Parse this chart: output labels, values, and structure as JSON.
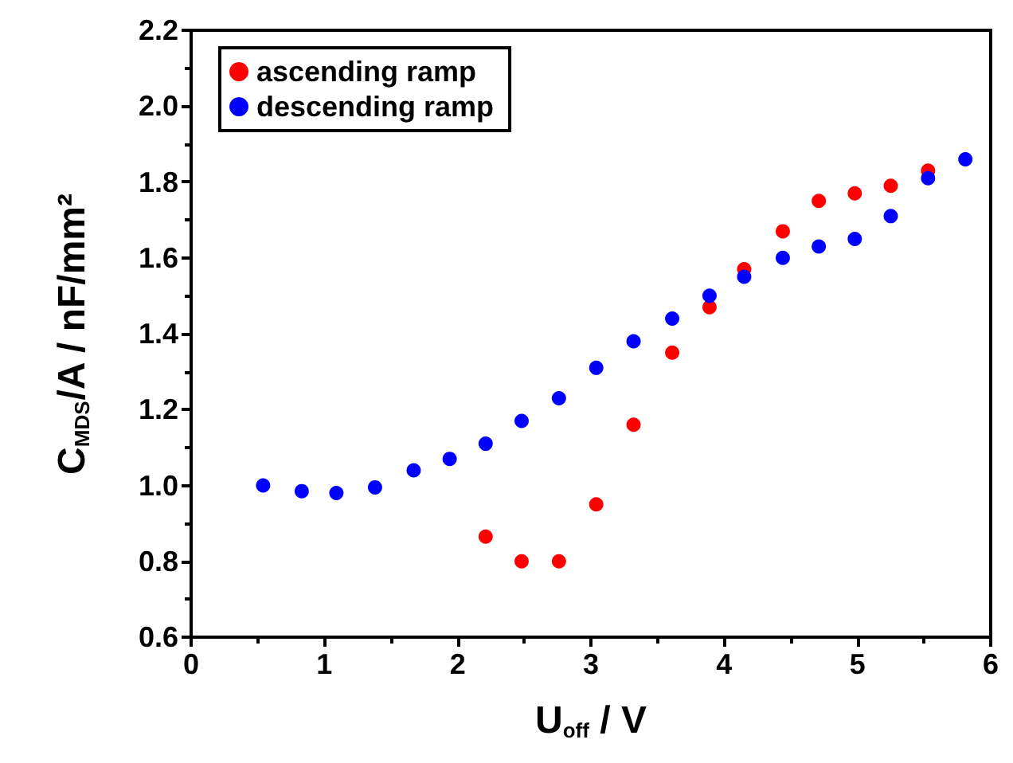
{
  "chart_data": {
    "type": "scatter",
    "xlabel": "U$_{off}$ / V",
    "ylabel": "C$_{MDS}$/A / nF/mm²",
    "xlim": [
      0,
      6
    ],
    "xticks": [
      0,
      1,
      2,
      3,
      4,
      5,
      6
    ],
    "ylim": [
      0.6,
      2.2
    ],
    "yticks": [
      0.6,
      0.8,
      {
        "value": 1,
        "label": "1.0"
      },
      1.2,
      1.4,
      1.6,
      1.8,
      {
        "value": 2,
        "label": "2.0"
      },
      2.2
    ],
    "legend": "top left",
    "marker": "circle",
    "grid": false,
    "series": [
      {
        "name": "ascending ramp",
        "color": "#ff0000",
        "x": [
          2.21,
          2.48,
          2.76,
          3.04,
          3.32,
          3.61,
          3.89,
          4.15,
          4.44,
          4.71,
          4.98,
          5.25,
          5.53
        ],
        "values": [
          0.865,
          0.8,
          0.8,
          0.95,
          1.16,
          1.35,
          1.47,
          1.57,
          1.67,
          1.75,
          1.77,
          1.79,
          1.83
        ]
      },
      {
        "name": "descending ramp",
        "color": "#0000ff",
        "x": [
          0.54,
          0.83,
          1.09,
          1.38,
          1.67,
          1.94,
          2.21,
          2.48,
          2.76,
          3.04,
          3.32,
          3.61,
          3.89,
          4.15,
          4.44,
          4.71,
          4.98,
          5.25,
          5.53,
          5.81
        ],
        "values": [
          1.0,
          0.985,
          0.98,
          0.995,
          1.04,
          1.07,
          1.11,
          1.17,
          1.23,
          1.31,
          1.38,
          1.44,
          1.5,
          1.55,
          1.6,
          1.63,
          1.65,
          1.71,
          1.81,
          1.86
        ]
      }
    ]
  }
}
